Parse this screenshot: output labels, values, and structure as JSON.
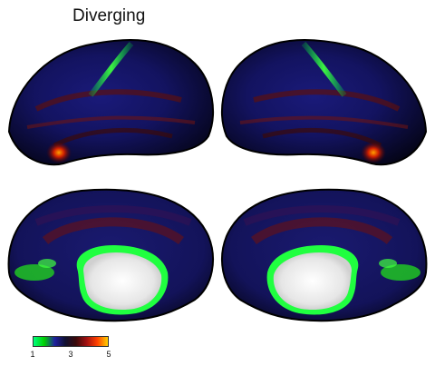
{
  "title": "Diverging",
  "colorbar": {
    "ticks": [
      "1",
      "3",
      "5"
    ],
    "colors": [
      "#00ff7f",
      "#00d000",
      "#1f1f9f",
      "#101030",
      "#3a0a0a",
      "#a01010",
      "#ff4000",
      "#ffd000"
    ]
  },
  "views": [
    {
      "name": "left-lateral"
    },
    {
      "name": "right-lateral"
    },
    {
      "name": "left-medial"
    },
    {
      "name": "right-medial"
    }
  ]
}
